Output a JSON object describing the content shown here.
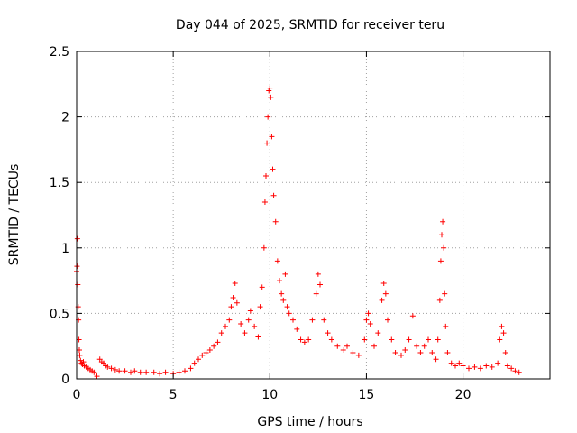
{
  "chart_data": {
    "type": "scatter",
    "title": "Day 044 of 2025, SRMTID for receiver teru",
    "xlabel": "GPS time / hours",
    "ylabel": "SRMTID / TECUs",
    "xlim": [
      0,
      24.5
    ],
    "ylim": [
      0,
      2.5
    ],
    "grid": true,
    "marker": "+",
    "colors": {
      "series": "#ff0000",
      "grid": "#a0a0a0",
      "axis": "#000000"
    },
    "x_ticks": [
      0,
      5,
      10,
      15,
      20
    ],
    "x_tick_labels": [
      "0",
      "5",
      "10",
      "15",
      "20"
    ],
    "y_ticks": [
      0,
      0.5,
      1,
      1.5,
      2,
      2.5
    ],
    "y_tick_labels": [
      "0",
      "0.5",
      "1",
      "1.5",
      "2",
      "2.5"
    ],
    "series": [
      {
        "name": "SRMTID",
        "points": [
          [
            0.0,
            0.82
          ],
          [
            0.02,
            0.86
          ],
          [
            0.04,
            1.07
          ],
          [
            0.06,
            0.72
          ],
          [
            0.08,
            0.55
          ],
          [
            0.1,
            0.45
          ],
          [
            0.12,
            0.3
          ],
          [
            0.14,
            0.22
          ],
          [
            0.16,
            0.18
          ],
          [
            0.2,
            0.14
          ],
          [
            0.25,
            0.12
          ],
          [
            0.3,
            0.11
          ],
          [
            0.35,
            0.13
          ],
          [
            0.4,
            0.1
          ],
          [
            0.5,
            0.09
          ],
          [
            0.6,
            0.08
          ],
          [
            0.7,
            0.07
          ],
          [
            0.8,
            0.06
          ],
          [
            0.9,
            0.05
          ],
          [
            1.05,
            0.02
          ],
          [
            1.2,
            0.15
          ],
          [
            1.3,
            0.13
          ],
          [
            1.4,
            0.12
          ],
          [
            1.5,
            0.1
          ],
          [
            1.6,
            0.09
          ],
          [
            1.8,
            0.08
          ],
          [
            2.0,
            0.07
          ],
          [
            2.2,
            0.06
          ],
          [
            2.5,
            0.06
          ],
          [
            2.8,
            0.05
          ],
          [
            3.0,
            0.06
          ],
          [
            3.3,
            0.05
          ],
          [
            3.6,
            0.05
          ],
          [
            4.0,
            0.05
          ],
          [
            4.3,
            0.04
          ],
          [
            4.6,
            0.05
          ],
          [
            5.0,
            0.04
          ],
          [
            5.3,
            0.05
          ],
          [
            5.6,
            0.06
          ],
          [
            5.9,
            0.08
          ],
          [
            6.1,
            0.12
          ],
          [
            6.3,
            0.15
          ],
          [
            6.5,
            0.18
          ],
          [
            6.7,
            0.2
          ],
          [
            6.9,
            0.22
          ],
          [
            7.1,
            0.25
          ],
          [
            7.3,
            0.28
          ],
          [
            7.5,
            0.35
          ],
          [
            7.7,
            0.4
          ],
          [
            7.9,
            0.45
          ],
          [
            8.0,
            0.55
          ],
          [
            8.1,
            0.62
          ],
          [
            8.2,
            0.73
          ],
          [
            8.3,
            0.58
          ],
          [
            8.5,
            0.42
          ],
          [
            8.7,
            0.35
          ],
          [
            8.9,
            0.45
          ],
          [
            9.0,
            0.52
          ],
          [
            9.2,
            0.4
          ],
          [
            9.4,
            0.32
          ],
          [
            9.5,
            0.55
          ],
          [
            9.6,
            0.7
          ],
          [
            9.7,
            1.0
          ],
          [
            9.75,
            1.35
          ],
          [
            9.8,
            1.55
          ],
          [
            9.85,
            1.8
          ],
          [
            9.9,
            2.0
          ],
          [
            9.95,
            2.2
          ],
          [
            10.0,
            2.22
          ],
          [
            10.05,
            2.15
          ],
          [
            10.1,
            1.85
          ],
          [
            10.15,
            1.6
          ],
          [
            10.2,
            1.4
          ],
          [
            10.3,
            1.2
          ],
          [
            10.4,
            0.9
          ],
          [
            10.5,
            0.75
          ],
          [
            10.6,
            0.65
          ],
          [
            10.7,
            0.6
          ],
          [
            10.8,
            0.8
          ],
          [
            10.9,
            0.55
          ],
          [
            11.0,
            0.5
          ],
          [
            11.2,
            0.45
          ],
          [
            11.4,
            0.38
          ],
          [
            11.6,
            0.3
          ],
          [
            11.8,
            0.28
          ],
          [
            12.0,
            0.3
          ],
          [
            12.2,
            0.45
          ],
          [
            12.4,
            0.65
          ],
          [
            12.5,
            0.8
          ],
          [
            12.6,
            0.72
          ],
          [
            12.8,
            0.45
          ],
          [
            13.0,
            0.35
          ],
          [
            13.2,
            0.3
          ],
          [
            13.5,
            0.25
          ],
          [
            13.8,
            0.22
          ],
          [
            14.0,
            0.25
          ],
          [
            14.3,
            0.2
          ],
          [
            14.6,
            0.18
          ],
          [
            14.9,
            0.3
          ],
          [
            15.0,
            0.45
          ],
          [
            15.1,
            0.5
          ],
          [
            15.2,
            0.42
          ],
          [
            15.4,
            0.25
          ],
          [
            15.6,
            0.35
          ],
          [
            15.8,
            0.6
          ],
          [
            15.9,
            0.73
          ],
          [
            16.0,
            0.65
          ],
          [
            16.1,
            0.45
          ],
          [
            16.3,
            0.3
          ],
          [
            16.5,
            0.2
          ],
          [
            16.8,
            0.18
          ],
          [
            17.0,
            0.22
          ],
          [
            17.2,
            0.3
          ],
          [
            17.4,
            0.48
          ],
          [
            17.6,
            0.25
          ],
          [
            17.8,
            0.2
          ],
          [
            18.0,
            0.25
          ],
          [
            18.2,
            0.3
          ],
          [
            18.4,
            0.2
          ],
          [
            18.6,
            0.15
          ],
          [
            18.7,
            0.3
          ],
          [
            18.8,
            0.6
          ],
          [
            18.85,
            0.9
          ],
          [
            18.9,
            1.1
          ],
          [
            18.95,
            1.2
          ],
          [
            19.0,
            1.0
          ],
          [
            19.05,
            0.65
          ],
          [
            19.1,
            0.4
          ],
          [
            19.2,
            0.2
          ],
          [
            19.4,
            0.12
          ],
          [
            19.6,
            0.1
          ],
          [
            19.8,
            0.12
          ],
          [
            20.0,
            0.1
          ],
          [
            20.3,
            0.08
          ],
          [
            20.6,
            0.09
          ],
          [
            20.9,
            0.08
          ],
          [
            21.2,
            0.1
          ],
          [
            21.5,
            0.09
          ],
          [
            21.8,
            0.12
          ],
          [
            21.9,
            0.3
          ],
          [
            22.0,
            0.4
          ],
          [
            22.1,
            0.35
          ],
          [
            22.2,
            0.2
          ],
          [
            22.3,
            0.1
          ],
          [
            22.5,
            0.08
          ],
          [
            22.7,
            0.06
          ],
          [
            22.9,
            0.05
          ]
        ]
      }
    ]
  }
}
